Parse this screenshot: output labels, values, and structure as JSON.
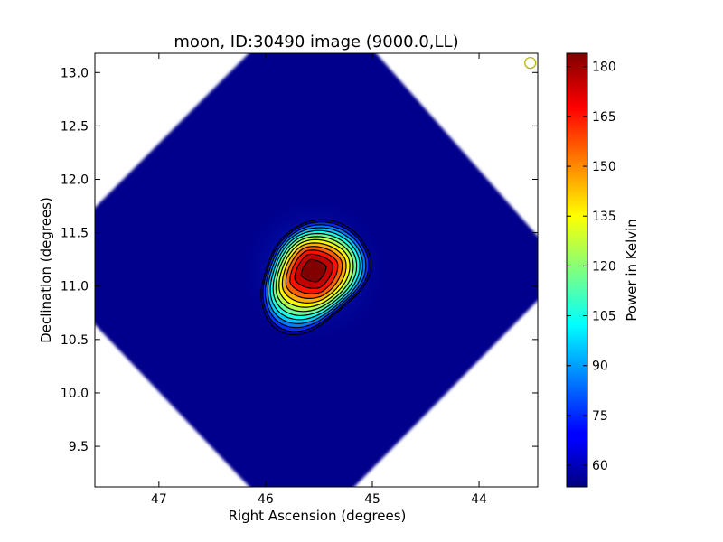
{
  "chart_data": {
    "type": "heatmap",
    "title": "moon, ID:30490 image (9000.0,LL)",
    "xlabel": "Right Ascension (degrees)",
    "ylabel": "Declination (degrees)",
    "colorbar_label": "Power in Kelvin",
    "xlim": [
      47.6,
      43.45
    ],
    "ylim": [
      9.12,
      13.18
    ],
    "x_ticks": [
      47,
      46,
      45,
      44
    ],
    "x_tick_labels": [
      "47",
      "46",
      "45",
      "44"
    ],
    "y_ticks": [
      9.5,
      10.0,
      10.5,
      11.0,
      11.5,
      12.0,
      12.5,
      13.0
    ],
    "y_tick_labels": [
      "9.5",
      "10.0",
      "10.5",
      "11.0",
      "11.5",
      "12.0",
      "12.5",
      "13.0"
    ],
    "colorbar_range": [
      53.5,
      184
    ],
    "colorbar_ticks": [
      60,
      75,
      90,
      105,
      120,
      135,
      150,
      165,
      180
    ],
    "colorbar_tick_labels": [
      "60",
      "75",
      "90",
      "105",
      "120",
      "135",
      "150",
      "165",
      "180"
    ],
    "colormap": "jet",
    "image_footprint": "diamond",
    "peak": {
      "ra": 45.55,
      "dec": 11.15,
      "value": 184
    },
    "background_value": 57,
    "contour_levels": [
      62,
      70,
      80,
      90,
      100,
      110,
      120,
      130,
      140,
      150,
      160,
      170,
      180
    ],
    "beam_marker": {
      "ra": 43.52,
      "dec": 13.09,
      "color": "#b5b800"
    },
    "grid": false,
    "legend": "none"
  }
}
